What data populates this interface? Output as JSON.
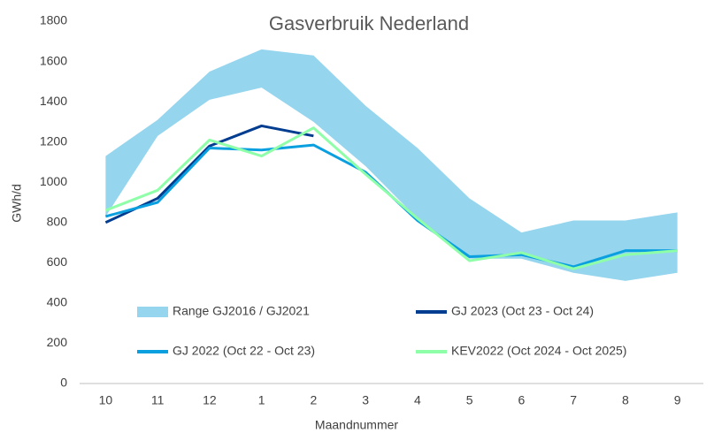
{
  "chart_data": {
    "type": "line",
    "title": "Gasverbruik Nederland",
    "xlabel": "Maandnummer",
    "ylabel": "GWh/d",
    "categories": [
      "10",
      "11",
      "12",
      "1",
      "2",
      "3",
      "4",
      "5",
      "6",
      "7",
      "8",
      "9"
    ],
    "ylim": [
      0,
      1800
    ],
    "yticks": [
      0,
      200,
      400,
      600,
      800,
      1000,
      1200,
      1400,
      1600,
      1800
    ],
    "grid": false,
    "series": [
      {
        "name": "Range GJ2016 / GJ2021",
        "color": "#95d5ee",
        "kind": "band",
        "low": [
          830,
          1230,
          1410,
          1470,
          1300,
          1080,
          820,
          620,
          620,
          550,
          510,
          550
        ],
        "high": [
          1130,
          1310,
          1550,
          1660,
          1630,
          1380,
          1170,
          920,
          750,
          810,
          810,
          850
        ]
      },
      {
        "name": "GJ 2023 (Oct 23 - Oct 24)",
        "color": "#003c8f",
        "values": [
          800,
          920,
          1180,
          1280,
          1230,
          null,
          null,
          null,
          null,
          null,
          null,
          null
        ]
      },
      {
        "name": "GJ 2022 (Oct 22 - Oct 23)",
        "color": "#0aa0e0",
        "values": [
          830,
          900,
          1170,
          1160,
          1185,
          1050,
          810,
          630,
          640,
          580,
          660,
          660
        ]
      },
      {
        "name": "KEV2022 (Oct 2024 - Oct 2025)",
        "color": "#8effa8",
        "values": [
          860,
          960,
          1210,
          1130,
          1270,
          1040,
          820,
          610,
          650,
          570,
          640,
          660
        ]
      }
    ]
  }
}
